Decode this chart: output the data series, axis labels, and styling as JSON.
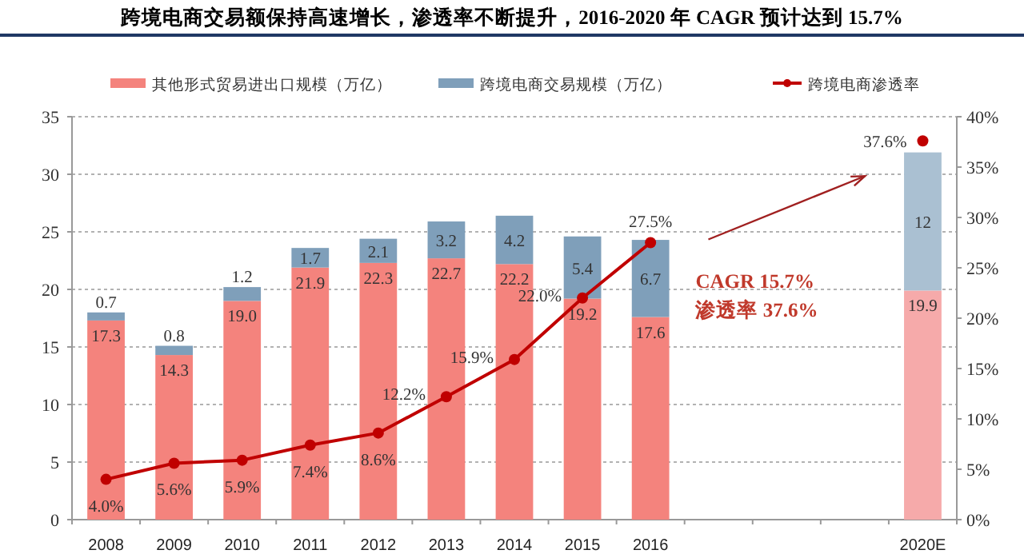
{
  "chart_data": {
    "type": "bar",
    "stacked": true,
    "title": "跨境电商交易额保持高速增长，渗透率不断提升，2016-2020 年 CAGR 预计达到 15.7%",
    "categories": [
      "2008",
      "2009",
      "2010",
      "2011",
      "2012",
      "2013",
      "2014",
      "2015",
      "2016",
      null,
      null,
      null,
      "2020E"
    ],
    "series": [
      {
        "name": "其他形式贸易进出口规模（万亿）",
        "color": "#f4837d",
        "colors": [
          "#f4837d",
          "#f4837d",
          "#f4837d",
          "#f4837d",
          "#f4837d",
          "#f4837d",
          "#f4837d",
          "#f4837d",
          "#f4837d",
          null,
          null,
          null,
          "#f6aaaa"
        ],
        "values": [
          17.3,
          14.3,
          19.0,
          21.9,
          22.3,
          22.7,
          22.2,
          19.2,
          17.6,
          null,
          null,
          null,
          19.9
        ],
        "value_labels": [
          "17.3",
          "14.3",
          "19.0",
          "21.9",
          "22.3",
          "22.7",
          "22.2",
          "19.2",
          "17.6",
          null,
          null,
          null,
          "19.9"
        ]
      },
      {
        "name": "跨境电商交易规模（万亿）",
        "color": "#7f9fba",
        "colors": [
          "#7f9fba",
          "#7f9fba",
          "#7f9fba",
          "#7f9fba",
          "#7f9fba",
          "#7f9fba",
          "#7f9fba",
          "#7f9fba",
          "#7f9fba",
          null,
          null,
          null,
          "#aac0d2"
        ],
        "values": [
          0.7,
          0.8,
          1.2,
          1.7,
          2.1,
          3.2,
          4.2,
          5.4,
          6.7,
          null,
          null,
          null,
          12
        ],
        "value_labels": [
          "0.7",
          "0.8",
          "1.2",
          "1.7",
          "2.1",
          "3.2",
          "4.2",
          "5.4",
          "6.7",
          null,
          null,
          null,
          "12"
        ]
      },
      {
        "name": "跨境电商渗透率",
        "type": "line",
        "axis": "y2",
        "color": "#c00000",
        "marker": "circle",
        "values": [
          4.0,
          5.6,
          5.9,
          7.4,
          8.6,
          12.2,
          15.9,
          22.0,
          27.5,
          null,
          null,
          null,
          37.6
        ],
        "value_labels": [
          "4.0%",
          "5.6%",
          "5.9%",
          "7.4%",
          "8.6%",
          "12.2%",
          "15.9%",
          "22.0%",
          "27.5%",
          null,
          null,
          null,
          "37.6%"
        ]
      }
    ],
    "ylim": [
      0,
      35
    ],
    "yticks": [
      0,
      5,
      10,
      15,
      20,
      25,
      30,
      35
    ],
    "y2lim": [
      0,
      40
    ],
    "y2ticks": [
      {
        "value": 0,
        "label": "0%"
      },
      {
        "value": 5,
        "label": "5%"
      },
      {
        "value": 10,
        "label": "10%"
      },
      {
        "value": 15,
        "label": "15%"
      },
      {
        "value": 20,
        "label": "20%"
      },
      {
        "value": 25,
        "label": "25%"
      },
      {
        "value": 30,
        "label": "30%"
      },
      {
        "value": 35,
        "label": "35%"
      },
      {
        "value": 40,
        "label": "40%"
      }
    ],
    "grid": "y",
    "legend": "top",
    "annotations": [
      "CAGR  15.7%",
      "渗透率 37.6%"
    ]
  }
}
